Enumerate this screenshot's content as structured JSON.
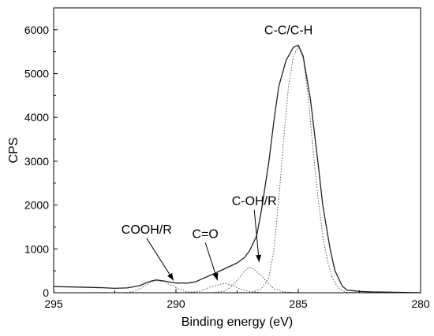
{
  "chart_data": {
    "type": "line",
    "title": "",
    "xlabel": "Binding energy (eV)",
    "ylabel": "CPS",
    "xlim": [
      295,
      280
    ],
    "ylim": [
      0,
      6500
    ],
    "x_reversed": true,
    "x_ticks": [
      295,
      290,
      285,
      280
    ],
    "y_ticks": [
      0,
      1000,
      2000,
      3000,
      4000,
      5000,
      6000
    ],
    "grid": false,
    "legend": "none",
    "series": [
      {
        "style": "solid",
        "points": [
          [
            295,
            140
          ],
          [
            294,
            130
          ],
          [
            293,
            115
          ],
          [
            292.5,
            100
          ],
          [
            292,
            110
          ],
          [
            291.5,
            160
          ],
          [
            291.2,
            230
          ],
          [
            291,
            270
          ],
          [
            290.8,
            290
          ],
          [
            290.5,
            270
          ],
          [
            290.2,
            240
          ],
          [
            290,
            220
          ],
          [
            289.5,
            220
          ],
          [
            289.2,
            250
          ],
          [
            289,
            300
          ],
          [
            288.5,
            420
          ],
          [
            288,
            550
          ],
          [
            287.5,
            680
          ],
          [
            287.2,
            800
          ],
          [
            287,
            950
          ],
          [
            286.7,
            1300
          ],
          [
            286.5,
            1900
          ],
          [
            286.2,
            3000
          ],
          [
            286,
            3900
          ],
          [
            285.8,
            4700
          ],
          [
            285.5,
            5300
          ],
          [
            285.2,
            5600
          ],
          [
            285,
            5650
          ],
          [
            284.8,
            5400
          ],
          [
            284.5,
            4400
          ],
          [
            284.2,
            3000
          ],
          [
            284,
            2000
          ],
          [
            283.7,
            1000
          ],
          [
            283.5,
            500
          ],
          [
            283.2,
            150
          ],
          [
            283,
            60
          ],
          [
            282.5,
            30
          ],
          [
            282,
            20
          ],
          [
            281,
            10
          ],
          [
            280,
            0
          ]
        ]
      },
      {
        "style": "dotted",
        "points": [
          [
            287,
            0
          ],
          [
            286.5,
            90
          ],
          [
            286.2,
            350
          ],
          [
            286,
            950
          ],
          [
            285.8,
            2100
          ],
          [
            285.6,
            3500
          ],
          [
            285.4,
            4700
          ],
          [
            285.2,
            5400
          ],
          [
            285,
            5620
          ],
          [
            284.8,
            5350
          ],
          [
            284.6,
            4500
          ],
          [
            284.4,
            3300
          ],
          [
            284.2,
            2200
          ],
          [
            284,
            1300
          ],
          [
            283.8,
            700
          ],
          [
            283.6,
            330
          ],
          [
            283.4,
            140
          ],
          [
            283.2,
            50
          ],
          [
            283,
            10
          ],
          [
            282.5,
            0
          ]
        ]
      },
      {
        "style": "dotted",
        "points": [
          [
            288.5,
            0
          ],
          [
            288,
            40
          ],
          [
            287.7,
            150
          ],
          [
            287.4,
            350
          ],
          [
            287.2,
            500
          ],
          [
            287,
            580
          ],
          [
            286.8,
            530
          ],
          [
            286.5,
            380
          ],
          [
            286.2,
            200
          ],
          [
            286,
            90
          ],
          [
            285.6,
            20
          ],
          [
            285,
            0
          ]
        ]
      },
      {
        "style": "dotted",
        "points": [
          [
            289.5,
            0
          ],
          [
            289,
            40
          ],
          [
            288.6,
            130
          ],
          [
            288.2,
            190
          ],
          [
            288,
            210
          ],
          [
            287.7,
            170
          ],
          [
            287.4,
            90
          ],
          [
            287,
            30
          ],
          [
            286.5,
            0
          ]
        ]
      },
      {
        "style": "dotted",
        "points": [
          [
            292,
            0
          ],
          [
            291.6,
            50
          ],
          [
            291.3,
            150
          ],
          [
            291,
            250
          ],
          [
            290.8,
            280
          ],
          [
            290.5,
            250
          ],
          [
            290.2,
            170
          ],
          [
            289.9,
            90
          ],
          [
            289.6,
            30
          ],
          [
            289.2,
            0
          ]
        ]
      }
    ],
    "annotations": [
      {
        "text": "C-C/C-H",
        "x": 285.4,
        "y": 5900,
        "arrow": false
      },
      {
        "text": "C-OH/R",
        "x": 286.8,
        "y": 2000,
        "arrow": true,
        "target": [
          286.6,
          700
        ]
      },
      {
        "text": "C=O",
        "x": 288.8,
        "y": 1250,
        "arrow": true,
        "target": [
          288.3,
          280
        ]
      },
      {
        "text": "COOH/R",
        "x": 291.2,
        "y": 1350,
        "arrow": true,
        "target": [
          290.1,
          280
        ]
      }
    ]
  }
}
